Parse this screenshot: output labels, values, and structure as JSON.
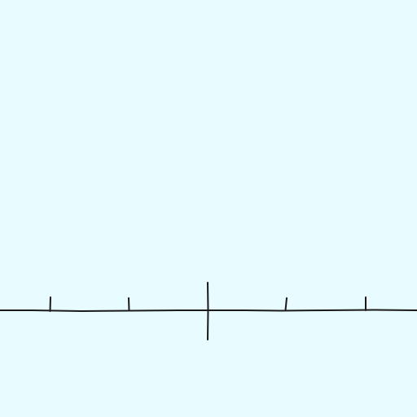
{
  "colors": {
    "background": "#e8fbff",
    "ink": "#1a1a1a"
  },
  "number_line": {
    "tick_count_each_side": 2,
    "labels": []
  }
}
